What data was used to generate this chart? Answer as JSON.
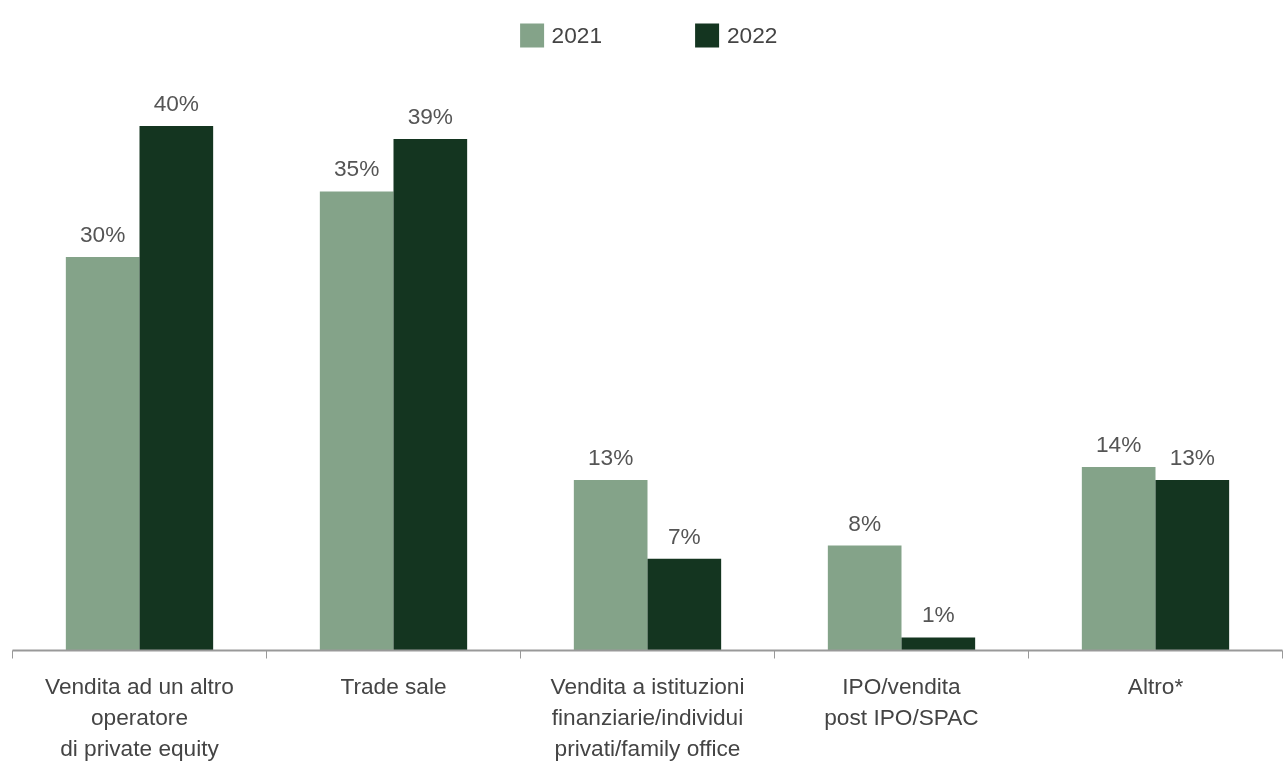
{
  "chart_data": {
    "type": "bar",
    "categories": [
      "Vendita ad un altro\noperatore\ndi private equity",
      "Trade sale",
      "Vendita a istituzioni\nfinanziarie/individui\nprivati/family office",
      "IPO/vendita\npost IPO/SPAC",
      "Altro*"
    ],
    "series": [
      {
        "name": "2021",
        "color": "#84a389",
        "values": [
          30,
          35,
          13,
          8,
          14
        ],
        "value_labels": [
          "30%",
          "35%",
          "13%",
          "8%",
          "14%"
        ]
      },
      {
        "name": "2022",
        "color": "#143520",
        "values": [
          40,
          39,
          7,
          1,
          13
        ],
        "value_labels": [
          "40%",
          "39%",
          "7%",
          "1%",
          "13%"
        ]
      }
    ],
    "legend": "top",
    "grid": false
  }
}
